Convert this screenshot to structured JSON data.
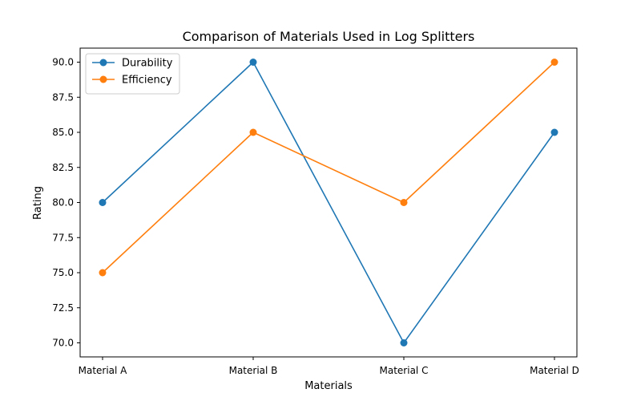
{
  "chart_data": {
    "type": "line",
    "title": "Comparison of Materials Used in Log Splitters",
    "xlabel": "Materials",
    "ylabel": "Rating",
    "categories": [
      "Material A",
      "Material B",
      "Material C",
      "Material D"
    ],
    "series": [
      {
        "name": "Durability",
        "values": [
          80,
          90,
          70,
          85
        ],
        "color": "#1f77b4",
        "marker": "circle"
      },
      {
        "name": "Efficiency",
        "values": [
          75,
          85,
          80,
          90
        ],
        "color": "#ff7f0e",
        "marker": "circle"
      }
    ],
    "ylim": [
      69.0,
      91.0
    ],
    "yticks": [
      70.0,
      72.5,
      75.0,
      77.5,
      80.0,
      82.5,
      85.0,
      87.5,
      90.0
    ],
    "ytick_labels": [
      "70.0",
      "72.5",
      "75.0",
      "77.5",
      "80.0",
      "82.5",
      "85.0",
      "87.5",
      "90.0"
    ],
    "grid": false,
    "legend_position": "upper-left"
  }
}
